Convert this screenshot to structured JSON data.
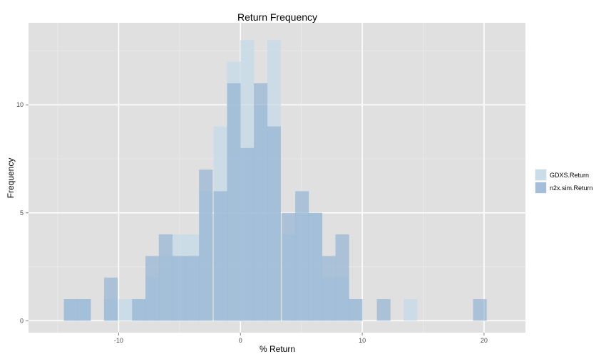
{
  "chart_data": {
    "type": "histogram",
    "title": "Return Frequency",
    "xlabel": "% Return",
    "ylabel": "Frequency",
    "xlim": [
      -17.4,
      23.4
    ],
    "ylim": [
      -0.55,
      13.8
    ],
    "x_ticks": [
      -10,
      0,
      10,
      20
    ],
    "y_ticks": [
      0,
      5,
      10
    ],
    "bin_width": 1.12,
    "background": "#e0e0e0",
    "grid": true,
    "legend_position": "right",
    "series": [
      {
        "name": "GDXS.Return",
        "color": "#c5dbe8",
        "opacity": 0.75,
        "bins": [
          {
            "x0": -14.5,
            "count": 1
          },
          {
            "x0": -13.4,
            "count": 1
          },
          {
            "x0": -11.2,
            "count": 1
          },
          {
            "x0": -10.0,
            "count": 1
          },
          {
            "x0": -8.9,
            "count": 1
          },
          {
            "x0": -7.8,
            "count": 2
          },
          {
            "x0": -6.7,
            "count": 3
          },
          {
            "x0": -5.6,
            "count": 4
          },
          {
            "x0": -4.5,
            "count": 4
          },
          {
            "x0": -3.4,
            "count": 6
          },
          {
            "x0": -2.2,
            "count": 9
          },
          {
            "x0": -1.1,
            "count": 12
          },
          {
            "x0": 0.0,
            "count": 13
          },
          {
            "x0": 1.1,
            "count": 10
          },
          {
            "x0": 2.2,
            "count": 13
          },
          {
            "x0": 3.4,
            "count": 4
          },
          {
            "x0": 4.5,
            "count": 5
          },
          {
            "x0": 5.6,
            "count": 5
          },
          {
            "x0": 6.7,
            "count": 2
          },
          {
            "x0": 7.8,
            "count": 2
          },
          {
            "x0": 8.9,
            "count": 1
          },
          {
            "x0": 13.4,
            "count": 1
          }
        ]
      },
      {
        "name": "n2x.sim.Return",
        "color": "#8fb1d2",
        "opacity": 0.65,
        "bins": [
          {
            "x0": -14.5,
            "count": 1
          },
          {
            "x0": -13.4,
            "count": 1
          },
          {
            "x0": -11.2,
            "count": 2
          },
          {
            "x0": -8.9,
            "count": 1
          },
          {
            "x0": -7.8,
            "count": 3
          },
          {
            "x0": -6.7,
            "count": 4
          },
          {
            "x0": -5.6,
            "count": 3
          },
          {
            "x0": -4.5,
            "count": 3
          },
          {
            "x0": -3.4,
            "count": 7
          },
          {
            "x0": -2.2,
            "count": 6
          },
          {
            "x0": -1.1,
            "count": 11
          },
          {
            "x0": 0.0,
            "count": 8
          },
          {
            "x0": 1.1,
            "count": 11
          },
          {
            "x0": 2.2,
            "count": 9
          },
          {
            "x0": 3.4,
            "count": 5
          },
          {
            "x0": 4.5,
            "count": 6
          },
          {
            "x0": 5.6,
            "count": 5
          },
          {
            "x0": 6.7,
            "count": 3
          },
          {
            "x0": 7.8,
            "count": 4
          },
          {
            "x0": 8.9,
            "count": 1
          },
          {
            "x0": 11.2,
            "count": 1
          },
          {
            "x0": 19.1,
            "count": 1
          }
        ]
      }
    ]
  }
}
